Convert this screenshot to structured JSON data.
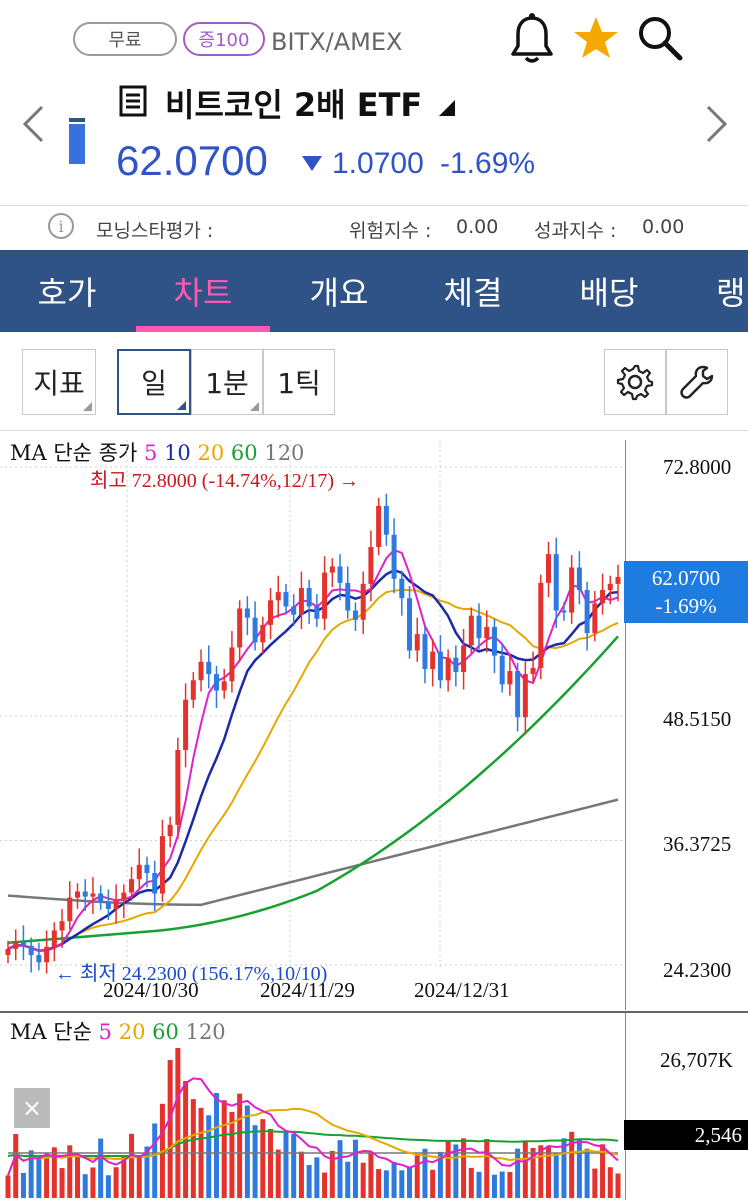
{
  "header": {
    "free_label": "무료",
    "margin_label": "증100",
    "ticker": "BITX/AMEX",
    "name": "비트코인 2배 ETF",
    "price": "62.0700",
    "change": "1.0700",
    "change_pct": "-1.69%",
    "icons": [
      "bell-icon",
      "star-icon",
      "search-icon"
    ],
    "colors": {
      "down": "#2f54c8",
      "star": "#f5a800"
    }
  },
  "info": {
    "morningstar_label": "모닝스타평가 :",
    "risk_label": "위험지수 :",
    "risk_value": "0.00",
    "perf_label": "성과지수 :",
    "perf_value": "0.00"
  },
  "tabs": [
    {
      "label": "호가"
    },
    {
      "label": "차트",
      "active": true
    },
    {
      "label": "개요"
    },
    {
      "label": "체결"
    },
    {
      "label": "배당"
    },
    {
      "label": "랭"
    }
  ],
  "toolbar": {
    "indicator_label": "지표",
    "period_day": "일",
    "period_1min": "1분",
    "period_1tick": "1틱"
  },
  "price_chart": {
    "legend_prefix": "MA 단순 종가",
    "ma_periods": [
      "5",
      "10",
      "20",
      "60",
      "120"
    ],
    "ma_colors": [
      "#e020c8",
      "#1a2aa8",
      "#e6a800",
      "#18a030",
      "#777777"
    ],
    "high_annot": "최고 72.8000 (-14.74%,12/17) →",
    "low_annot": "← 최저 24.2300 (156.17%,10/10)",
    "y_ticks": [
      "72.8000",
      "48.5150",
      "36.3725",
      "24.2300"
    ],
    "x_ticks": [
      "2024/10/30",
      "2024/11/29",
      "2024/12/31"
    ],
    "last_price_tag": "62.0700",
    "last_pct_tag": "-1.69%"
  },
  "volume_chart": {
    "legend_prefix": "MA 단순",
    "ma_periods": [
      "5",
      "20",
      "60",
      "120"
    ],
    "ma_colors": [
      "#e020c8",
      "#e6a800",
      "#18a030",
      "#777777"
    ],
    "y_tick": "26,707K",
    "last_volume_tag": "2,546",
    "close_label": "×"
  },
  "chart_data": {
    "type": "candlestick",
    "y_range": [
      24.23,
      72.8
    ],
    "x_ticks": [
      "2024/10/30",
      "2024/11/29",
      "2024/12/31"
    ],
    "closes": [
      25.8,
      26.5,
      26.1,
      25.2,
      24.5,
      26.0,
      27.6,
      28.5,
      30.8,
      31.4,
      30.9,
      31.2,
      30.4,
      29.7,
      30.5,
      31.3,
      32.6,
      34.0,
      33.2,
      31.2,
      36.8,
      37.9,
      45.2,
      50.1,
      52.0,
      53.8,
      52.6,
      51.0,
      51.9,
      55.2,
      59.0,
      58.1,
      55.7,
      57.4,
      59.8,
      60.6,
      59.2,
      58.4,
      61.0,
      59.2,
      58.0,
      62.5,
      63.1,
      61.5,
      58.8,
      57.9,
      61.4,
      65.0,
      69.0,
      66.2,
      61.9,
      60.0,
      54.9,
      56.5,
      53.1,
      54.8,
      52.0,
      54.2,
      52.8,
      55.4,
      58.3,
      56.1,
      57.2,
      54.4,
      51.6,
      52.9,
      48.4,
      52.6,
      53.2,
      61.5,
      64.3,
      58.8,
      58.6,
      63.0,
      60.8,
      56.6,
      59.5,
      60.8,
      61.4,
      62.07
    ],
    "high": 72.8,
    "low": 24.23
  }
}
